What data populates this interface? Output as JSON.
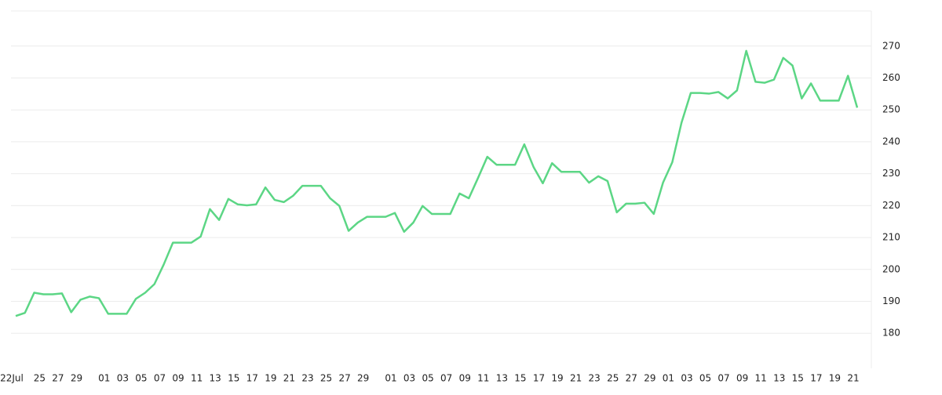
{
  "chart_data": {
    "type": "line",
    "categories": [
      "22Jul",
      null,
      null,
      "25",
      null,
      "27",
      null,
      "29",
      null,
      null,
      "01",
      null,
      "03",
      null,
      "05",
      null,
      "07",
      null,
      "09",
      null,
      "11",
      null,
      "13",
      null,
      "15",
      null,
      "17",
      null,
      "19",
      null,
      "21",
      null,
      "23",
      null,
      "25",
      null,
      "27",
      null,
      "29",
      null,
      null,
      "01",
      null,
      "03",
      null,
      "05",
      null,
      "07",
      null,
      "09",
      null,
      "11",
      null,
      "13",
      null,
      "15",
      null,
      "17",
      null,
      "19",
      null,
      "21",
      null,
      "23",
      null,
      "25",
      null,
      "27",
      null,
      "29",
      null,
      "01",
      null,
      "03",
      null,
      "05",
      null,
      "07",
      null,
      "09",
      null,
      "11",
      null,
      "13",
      null,
      "15",
      null,
      "17",
      null,
      "19",
      null,
      "21"
    ],
    "values": [
      185.4,
      186.4,
      192.7,
      192.2,
      192.2,
      192.5,
      186.6,
      190.5,
      191.5,
      191.0,
      186.1,
      186.1,
      186.1,
      190.8,
      192.7,
      195.4,
      201.5,
      208.4,
      208.4,
      208.4,
      210.3,
      218.9,
      215.5,
      222.1,
      220.4,
      220.1,
      220.4,
      225.7,
      221.8,
      221.1,
      223.1,
      226.2,
      226.2,
      226.2,
      222.3,
      219.9,
      212.1,
      214.7,
      216.5,
      216.5,
      216.5,
      217.7,
      211.8,
      214.7,
      219.9,
      217.4,
      217.4,
      217.4,
      223.8,
      222.3,
      228.7,
      235.3,
      232.8,
      232.8,
      232.8,
      239.2,
      232.1,
      227.0,
      233.3,
      230.6,
      230.6,
      230.6,
      227.2,
      229.2,
      227.7,
      217.9,
      220.6,
      220.6,
      220.9,
      217.4,
      227.2,
      233.6,
      246.0,
      255.3,
      255.3,
      255.1,
      255.6,
      253.6,
      256.1,
      268.5,
      258.8,
      258.5,
      259.5,
      266.3,
      263.9,
      253.6,
      258.3,
      252.9,
      252.9,
      252.9,
      260.7,
      250.7
    ],
    "color": "#5cd685",
    "ylim": [
      169,
      281
    ],
    "yticks": [
      180,
      190,
      200,
      210,
      220,
      230,
      240,
      250,
      260,
      270
    ],
    "grid": true
  }
}
